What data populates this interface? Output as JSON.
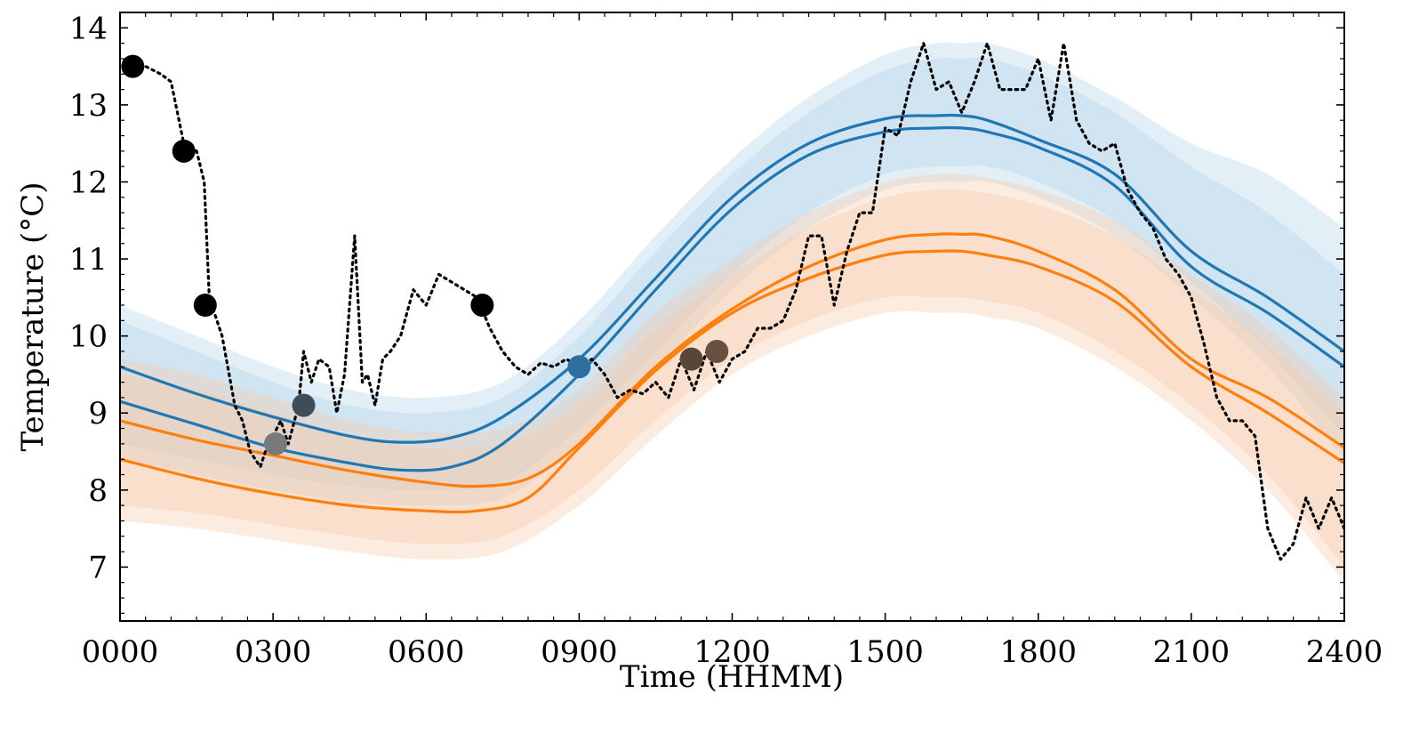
{
  "chart_data": {
    "type": "line",
    "title": "",
    "xlabel": "Time (HHMM)",
    "ylabel": "Temperature (°C)",
    "xlim": [
      0,
      24
    ],
    "ylim": [
      6.3,
      14.2
    ],
    "grid": false,
    "legend": "none",
    "x_ticks": [
      {
        "value": 0,
        "label": "0000"
      },
      {
        "value": 3,
        "label": "0300"
      },
      {
        "value": 6,
        "label": "0600"
      },
      {
        "value": 9,
        "label": "0900"
      },
      {
        "value": 12,
        "label": "1200"
      },
      {
        "value": 15,
        "label": "1500"
      },
      {
        "value": 18,
        "label": "1800"
      },
      {
        "value": 21,
        "label": "2100"
      },
      {
        "value": 24,
        "label": "2400"
      }
    ],
    "y_ticks": [
      {
        "value": 7,
        "label": "7"
      },
      {
        "value": 8,
        "label": "8"
      },
      {
        "value": 9,
        "label": "9"
      },
      {
        "value": 10,
        "label": "10"
      },
      {
        "value": 11,
        "label": "11"
      },
      {
        "value": 12,
        "label": "12"
      },
      {
        "value": 13,
        "label": "13"
      },
      {
        "value": 14,
        "label": "14"
      }
    ],
    "bands": [
      {
        "color": "#aed0e8",
        "opacity": 0.35,
        "x": [
          0,
          1.5,
          3,
          4.5,
          6,
          7.5,
          9,
          10.5,
          12,
          13.5,
          15,
          16,
          16.5,
          17,
          18,
          19.5,
          21,
          22.5,
          24
        ],
        "upper": [
          10.4,
          10.0,
          9.6,
          9.3,
          9.2,
          9.4,
          10.2,
          11.3,
          12.3,
          13.1,
          13.65,
          13.8,
          13.8,
          13.8,
          13.6,
          13.1,
          12.5,
          12.1,
          11.4
        ],
        "lower": [
          8.4,
          8.2,
          8.0,
          7.85,
          7.8,
          7.9,
          8.6,
          9.6,
          10.6,
          11.4,
          11.9,
          12.0,
          12.0,
          12.0,
          11.8,
          11.3,
          10.5,
          9.6,
          8.4
        ]
      },
      {
        "color": "#aed0e8",
        "opacity": 0.35,
        "x": [
          0,
          1.5,
          3,
          4.5,
          6,
          7.5,
          9,
          10.5,
          12,
          13.5,
          15,
          16,
          16.5,
          17,
          18,
          19.5,
          21,
          22.5,
          24
        ],
        "upper": [
          10.2,
          9.8,
          9.4,
          9.1,
          9.0,
          9.2,
          10.0,
          11.1,
          12.1,
          12.9,
          13.45,
          13.6,
          13.6,
          13.6,
          13.4,
          12.9,
          12.2,
          11.6,
          10.8
        ],
        "lower": [
          8.6,
          8.4,
          8.2,
          8.05,
          8.0,
          8.1,
          8.8,
          9.8,
          10.8,
          11.6,
          12.1,
          12.2,
          12.2,
          12.2,
          12.0,
          11.5,
          10.7,
          9.8,
          8.7
        ]
      },
      {
        "color": "#f6c9a6",
        "opacity": 0.35,
        "x": [
          0,
          1.5,
          3,
          4.5,
          6,
          7.5,
          9,
          10.5,
          12,
          13.5,
          15,
          16,
          16.5,
          17,
          18,
          19.5,
          21,
          22.5,
          24
        ],
        "upper": [
          9.7,
          9.5,
          9.2,
          8.9,
          8.75,
          8.8,
          9.3,
          10.3,
          11.0,
          11.6,
          12.0,
          12.1,
          12.1,
          12.05,
          11.9,
          11.5,
          10.8,
          10.1,
          9.2
        ],
        "lower": [
          7.6,
          7.5,
          7.35,
          7.2,
          7.1,
          7.2,
          7.8,
          8.7,
          9.5,
          10.0,
          10.3,
          10.3,
          10.3,
          10.25,
          10.1,
          9.6,
          8.9,
          8.0,
          6.8
        ]
      },
      {
        "color": "#f6c9a6",
        "opacity": 0.35,
        "x": [
          0,
          1.5,
          3,
          4.5,
          6,
          7.5,
          9,
          10.5,
          12,
          13.5,
          15,
          16,
          16.5,
          17,
          18,
          19.5,
          21,
          22.5,
          24
        ],
        "upper": [
          9.5,
          9.3,
          9.0,
          8.7,
          8.55,
          8.6,
          9.1,
          10.1,
          10.8,
          11.4,
          11.8,
          11.9,
          11.9,
          11.85,
          11.7,
          11.3,
          10.6,
          9.9,
          9.0
        ],
        "lower": [
          7.8,
          7.7,
          7.55,
          7.4,
          7.3,
          7.4,
          8.0,
          8.9,
          9.7,
          10.2,
          10.5,
          10.5,
          10.5,
          10.45,
          10.3,
          9.8,
          9.1,
          8.2,
          7.0
        ]
      }
    ],
    "series": [
      {
        "color": "#1f77b4",
        "x": [
          0,
          1.5,
          3,
          4.5,
          5.5,
          6.5,
          7.5,
          9,
          10.5,
          12,
          13.5,
          15,
          16,
          16.5,
          17,
          18,
          19.5,
          21,
          22.5,
          24
        ],
        "y": [
          9.6,
          9.25,
          8.95,
          8.7,
          8.62,
          8.68,
          8.95,
          9.7,
          10.75,
          11.8,
          12.5,
          12.82,
          12.86,
          12.86,
          12.8,
          12.55,
          12.1,
          11.1,
          10.5,
          9.8
        ]
      },
      {
        "color": "#1f77b4",
        "x": [
          0,
          1.5,
          3,
          4.5,
          5.5,
          6.5,
          7.5,
          9,
          10.5,
          12,
          13.5,
          15,
          16,
          16.5,
          17,
          18,
          19.5,
          21,
          22.5,
          24
        ],
        "y": [
          9.15,
          8.85,
          8.55,
          8.35,
          8.26,
          8.3,
          8.6,
          9.5,
          10.6,
          11.65,
          12.35,
          12.65,
          12.7,
          12.7,
          12.65,
          12.45,
          11.95,
          10.9,
          10.3,
          9.6
        ]
      },
      {
        "color": "#ff7f0e",
        "x": [
          0,
          1.5,
          3,
          4.5,
          6,
          7,
          8,
          9,
          10.5,
          12,
          13.5,
          15,
          16,
          16.5,
          17,
          18,
          19.5,
          21,
          22.5,
          24
        ],
        "y": [
          8.9,
          8.65,
          8.45,
          8.25,
          8.1,
          8.05,
          8.15,
          8.6,
          9.6,
          10.35,
          10.9,
          11.25,
          11.32,
          11.32,
          11.3,
          11.1,
          10.6,
          9.7,
          9.2,
          8.55
        ]
      },
      {
        "color": "#ff7f0e",
        "x": [
          0,
          1.5,
          3,
          4.5,
          6,
          7,
          8,
          9,
          10.5,
          12,
          13.5,
          15,
          16,
          16.5,
          17,
          18,
          19.5,
          21,
          22.5,
          24
        ],
        "y": [
          8.4,
          8.15,
          7.95,
          7.8,
          7.73,
          7.73,
          7.9,
          8.55,
          9.55,
          10.3,
          10.75,
          11.05,
          11.1,
          11.1,
          11.05,
          10.9,
          10.45,
          9.6,
          9.0,
          8.35
        ]
      },
      {
        "color": "#000000",
        "style": "dotted",
        "x": [
          0.25,
          0.5,
          0.8,
          1.0,
          1.25,
          1.5,
          1.65,
          1.75,
          2.0,
          2.25,
          2.4,
          2.55,
          2.75,
          2.9,
          3.0,
          3.15,
          3.3,
          3.5,
          3.6,
          3.75,
          3.9,
          4.1,
          4.25,
          4.4,
          4.6,
          4.75,
          4.85,
          5.0,
          5.15,
          5.3,
          5.5,
          5.75,
          6.0,
          6.25,
          6.5,
          6.75,
          7.0,
          7.25,
          7.5,
          7.75,
          8.0,
          8.25,
          8.5,
          8.75,
          9.0,
          9.25,
          9.5,
          9.75,
          10.0,
          10.25,
          10.5,
          10.75,
          11.0,
          11.25,
          11.5,
          11.75,
          12.0,
          12.25,
          12.5,
          12.75,
          13.0,
          13.25,
          13.5,
          13.75,
          14.0,
          14.25,
          14.5,
          14.75,
          15.0,
          15.25,
          15.5,
          15.75,
          16.0,
          16.25,
          16.5,
          16.75,
          17.0,
          17.25,
          17.5,
          17.75,
          18.0,
          18.25,
          18.5,
          18.75,
          19.0,
          19.25,
          19.5,
          19.75,
          20.0,
          20.25,
          20.5,
          20.75,
          21.0,
          21.25,
          21.5,
          21.75,
          22.0,
          22.25,
          22.5,
          22.75,
          23.0,
          23.25,
          23.5,
          23.75,
          24.0
        ],
        "y": [
          13.5,
          13.5,
          13.4,
          13.3,
          12.5,
          12.4,
          12.0,
          10.5,
          10.0,
          9.1,
          8.9,
          8.5,
          8.3,
          8.6,
          8.7,
          8.9,
          8.6,
          9.1,
          9.8,
          9.4,
          9.7,
          9.6,
          9.0,
          9.5,
          11.3,
          9.4,
          9.5,
          9.1,
          9.7,
          9.8,
          10.0,
          10.6,
          10.4,
          10.8,
          10.7,
          10.6,
          10.5,
          10.1,
          9.8,
          9.6,
          9.5,
          9.65,
          9.6,
          9.7,
          9.6,
          9.7,
          9.5,
          9.2,
          9.3,
          9.25,
          9.4,
          9.2,
          9.7,
          9.3,
          9.8,
          9.4,
          9.7,
          9.8,
          10.1,
          10.1,
          10.2,
          10.6,
          11.3,
          11.3,
          10.4,
          11.1,
          11.6,
          11.6,
          12.7,
          12.6,
          13.3,
          13.8,
          13.2,
          13.3,
          12.9,
          13.3,
          13.8,
          13.2,
          13.2,
          13.2,
          13.6,
          12.8,
          13.8,
          12.8,
          12.5,
          12.4,
          12.5,
          11.9,
          11.6,
          11.4,
          11.0,
          10.8,
          10.5,
          9.9,
          9.2,
          8.9,
          8.9,
          8.7,
          7.5,
          7.1,
          7.3,
          7.9,
          7.5,
          7.9,
          7.5
        ]
      }
    ],
    "observations": [
      {
        "x": 0.25,
        "y": 13.5,
        "color": "#000000"
      },
      {
        "x": 1.25,
        "y": 12.4,
        "color": "#000000"
      },
      {
        "x": 1.67,
        "y": 10.4,
        "color": "#000000"
      },
      {
        "x": 3.05,
        "y": 8.6,
        "color": "#7a7a7a"
      },
      {
        "x": 3.6,
        "y": 9.1,
        "color": "#3f4d59"
      },
      {
        "x": 7.1,
        "y": 10.4,
        "color": "#000000"
      },
      {
        "x": 9.0,
        "y": 9.6,
        "color": "#2f6fa0"
      },
      {
        "x": 11.2,
        "y": 9.7,
        "color": "#5a4639"
      },
      {
        "x": 11.7,
        "y": 9.8,
        "color": "#66503f"
      }
    ]
  }
}
